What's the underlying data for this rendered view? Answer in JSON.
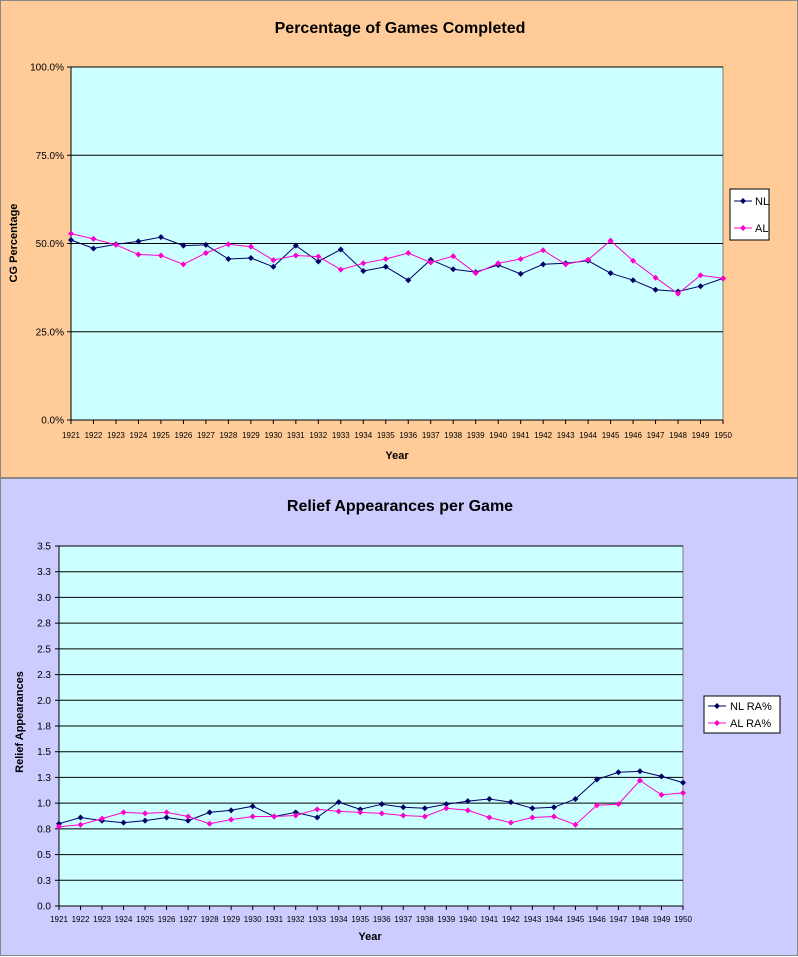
{
  "colors": {
    "nl": "#000066",
    "al": "#ff00cc",
    "plot_bg": "#ccffff",
    "panel1_bg": "#ffcc99",
    "panel2_bg": "#ccccff"
  },
  "chart_data": [
    {
      "type": "line",
      "title": "Percentage of Games Completed",
      "xlabel": "Year",
      "ylabel": "CG Percentage",
      "ylim": [
        0,
        100
      ],
      "yticks": [
        "0.0%",
        "25.0%",
        "50.0%",
        "75.0%",
        "100.0%"
      ],
      "ytick_values": [
        0,
        25,
        50,
        75,
        100
      ],
      "categories": [
        "1921",
        "1922",
        "1923",
        "1924",
        "1925",
        "1926",
        "1927",
        "1928",
        "1929",
        "1930",
        "1931",
        "1932",
        "1933",
        "1934",
        "1935",
        "1936",
        "1937",
        "1938",
        "1939",
        "1940",
        "1941",
        "1942",
        "1943",
        "1944",
        "1945",
        "1946",
        "1947",
        "1948",
        "1949",
        "1950"
      ],
      "legend": "right",
      "grid": true,
      "series": [
        {
          "name": "NL",
          "color": "#000066",
          "values": [
            51.0,
            48.6,
            49.8,
            50.6,
            51.8,
            49.4,
            49.6,
            45.6,
            45.9,
            43.4,
            49.4,
            44.9,
            48.3,
            42.2,
            43.4,
            39.6,
            45.4,
            42.7,
            41.9,
            43.9,
            41.4,
            44.1,
            44.4,
            45.1,
            41.6,
            39.6,
            36.9,
            36.4,
            37.9,
            40.1
          ]
        },
        {
          "name": "AL",
          "color": "#ff00cc",
          "values": [
            52.8,
            51.3,
            49.6,
            46.9,
            46.6,
            44.1,
            47.3,
            49.8,
            49.1,
            45.3,
            46.6,
            46.3,
            42.6,
            44.4,
            45.6,
            47.3,
            44.6,
            46.4,
            41.6,
            44.4,
            45.6,
            48.1,
            44.1,
            45.4,
            50.8,
            45.1,
            40.3,
            35.8,
            41.0,
            40.1
          ]
        }
      ]
    },
    {
      "type": "line",
      "title": "Relief Appearances per Game",
      "xlabel": "Year",
      "ylabel": "Relief Appearances",
      "ylim": [
        0,
        3.5
      ],
      "yticks": [
        "0.0",
        "0.3",
        "0.5",
        "0.8",
        "1.0",
        "1.3",
        "1.5",
        "1.8",
        "2.0",
        "2.3",
        "2.5",
        "2.8",
        "3.0",
        "3.3",
        "3.5"
      ],
      "ytick_values": [
        0,
        0.25,
        0.5,
        0.75,
        1.0,
        1.25,
        1.5,
        1.75,
        2.0,
        2.25,
        2.5,
        2.75,
        3.0,
        3.25,
        3.5
      ],
      "categories": [
        "1921",
        "1922",
        "1923",
        "1924",
        "1925",
        "1926",
        "1927",
        "1928",
        "1929",
        "1930",
        "1931",
        "1932",
        "1933",
        "1934",
        "1935",
        "1936",
        "1937",
        "1938",
        "1939",
        "1940",
        "1941",
        "1942",
        "1943",
        "1944",
        "1945",
        "1946",
        "1947",
        "1948",
        "1949",
        "1950"
      ],
      "legend": "right",
      "grid": true,
      "series": [
        {
          "name": "NL RA%",
          "color": "#000066",
          "values": [
            0.8,
            0.86,
            0.83,
            0.81,
            0.83,
            0.86,
            0.83,
            0.91,
            0.93,
            0.97,
            0.87,
            0.91,
            0.86,
            1.01,
            0.94,
            0.99,
            0.96,
            0.95,
            0.99,
            1.02,
            1.04,
            1.01,
            0.95,
            0.96,
            1.04,
            1.23,
            1.3,
            1.31,
            1.26,
            1.2
          ]
        },
        {
          "name": "AL RA%",
          "color": "#ff00cc",
          "values": [
            0.77,
            0.79,
            0.85,
            0.91,
            0.9,
            0.91,
            0.87,
            0.8,
            0.84,
            0.87,
            0.87,
            0.88,
            0.94,
            0.92,
            0.91,
            0.9,
            0.88,
            0.87,
            0.95,
            0.93,
            0.86,
            0.81,
            0.86,
            0.87,
            0.79,
            0.98,
            0.99,
            1.22,
            1.08,
            1.1
          ]
        }
      ]
    }
  ]
}
